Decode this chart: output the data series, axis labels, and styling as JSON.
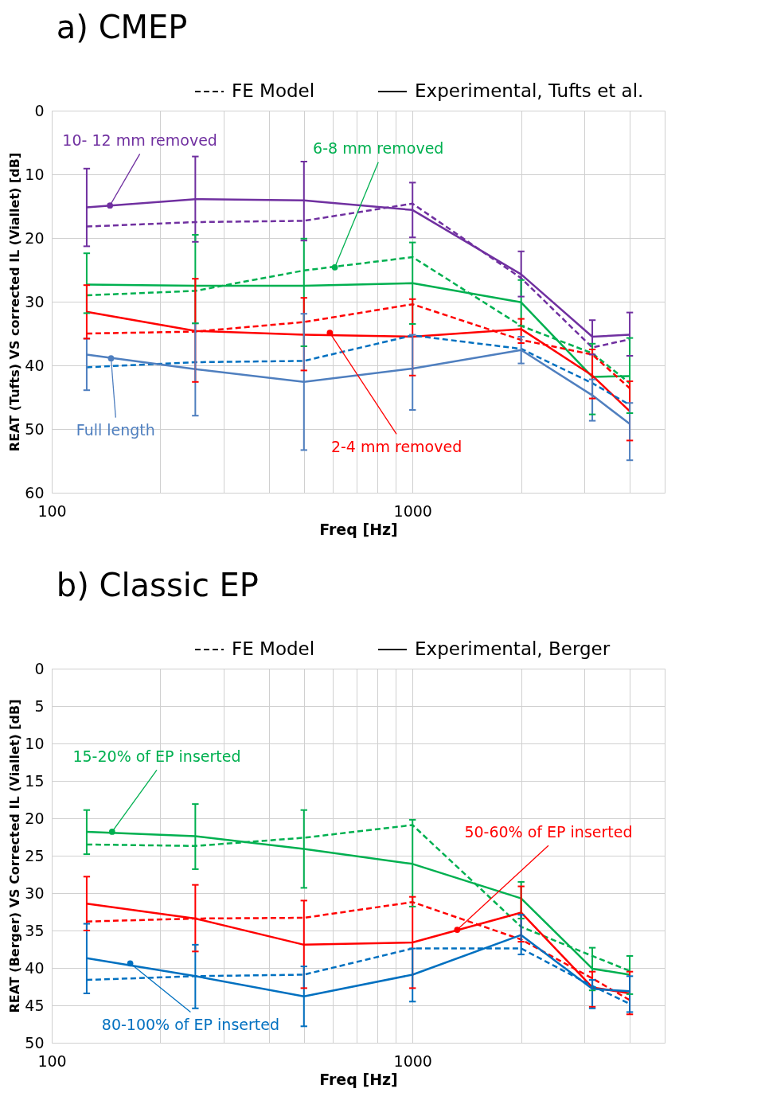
{
  "chart_data": [
    {
      "type": "line",
      "title": "a) CMEP",
      "xlabel": "Freq [Hz]",
      "ylabel": "REAT (Tufts) VS corrected IL (Viallet) [dB]",
      "x": [
        125,
        250,
        500,
        1000,
        2000,
        3150,
        4000
      ],
      "xlim": [
        100,
        5000
      ],
      "log": "x",
      "xticks": [
        100,
        {
          "value": 200,
          "label": null
        },
        {
          "value": 300,
          "label": null
        },
        {
          "value": 400,
          "label": null
        },
        {
          "value": 500,
          "label": null
        },
        {
          "value": 600,
          "label": null
        },
        {
          "value": 700,
          "label": null
        },
        {
          "value": 800,
          "label": null
        },
        {
          "value": 900,
          "label": null
        },
        1000,
        {
          "value": 2000,
          "label": null
        },
        {
          "value": 3000,
          "label": null
        },
        {
          "value": 4000,
          "label": null
        },
        {
          "value": 5000,
          "label": null
        }
      ],
      "ylim": [
        60,
        0
      ],
      "yticks": [
        0,
        10,
        20,
        30,
        40,
        50,
        60
      ],
      "grid": true,
      "marker": "none",
      "series": [
        {
          "color": "#7030a0",
          "line_style": "dashed",
          "values": [
            18.2,
            17.5,
            17.3,
            14.6,
            26.3,
            37.2,
            35.9
          ]
        },
        {
          "color": "#7030a0",
          "line_style": "solid",
          "values": [
            15.2,
            13.9,
            14.1,
            15.6,
            25.7,
            35.5,
            35.2
          ],
          "errors": [
            [
              9.1,
              21.3
            ],
            [
              7.2,
              20.6
            ],
            [
              8.0,
              20.4
            ],
            [
              11.3,
              19.9
            ],
            [
              22.1,
              29.2
            ],
            [
              32.9,
              38.3
            ],
            [
              31.7,
              38.5
            ]
          ]
        },
        {
          "color": "#00b050",
          "line_style": "dashed",
          "values": [
            29.0,
            28.3,
            25.1,
            23.0,
            33.8,
            38.1,
            42.8
          ]
        },
        {
          "color": "#00b050",
          "line_style": "solid",
          "values": [
            27.3,
            27.5,
            27.5,
            27.1,
            30.1,
            41.8,
            41.7
          ],
          "errors": [
            [
              22.4,
              31.8
            ],
            [
              19.5,
              33.4
            ],
            [
              20.1,
              37.0
            ],
            [
              20.7,
              33.5
            ],
            [
              26.6,
              33.8
            ],
            [
              36.6,
              47.7
            ],
            [
              35.7,
              47.5
            ]
          ]
        },
        {
          "color": "#ff0000",
          "line_style": "dashed",
          "values": [
            35.0,
            34.7,
            33.2,
            30.4,
            36.0,
            38.3,
            43.6
          ]
        },
        {
          "color": "#ff0000",
          "line_style": "solid",
          "values": [
            31.6,
            34.6,
            35.2,
            35.5,
            34.3,
            41.6,
            47.2
          ],
          "errors": [
            [
              27.4,
              35.8
            ],
            [
              26.4,
              42.6
            ],
            [
              29.4,
              40.8
            ],
            [
              29.6,
              41.6
            ],
            [
              32.7,
              36.5
            ],
            [
              37.5,
              45.2
            ],
            [
              42.5,
              51.8
            ]
          ]
        },
        {
          "color": "#0070c0",
          "line_style": "dashed",
          "values": [
            40.3,
            39.5,
            39.3,
            35.3,
            37.4,
            42.8,
            46.2
          ]
        },
        {
          "color": "#4f7fbf",
          "line_style": "solid",
          "values": [
            38.3,
            40.6,
            42.6,
            40.5,
            37.6,
            44.7,
            49.2
          ],
          "errors": [
            [
              35.8,
              43.9
            ],
            [
              33.4,
              47.9
            ],
            [
              31.9,
              53.3
            ],
            [
              35.2,
              47.0
            ],
            [
              35.5,
              39.7
            ],
            [
              42.2,
              48.7
            ],
            [
              45.9,
              54.9
            ]
          ]
        }
      ],
      "annotations": [
        "FE Model",
        "Experimental, Tufts et al.",
        {
          "text": "10- 12 mm removed",
          "x": 145,
          "y": 14.9
        },
        {
          "text": "6-8 mm removed",
          "x": 609,
          "y": 24.6
        },
        {
          "text": "Full length",
          "x": 146,
          "y": 38.9
        },
        {
          "text": "2-4 mm removed",
          "x": 590,
          "y": 34.9
        }
      ]
    },
    {
      "type": "line",
      "title": "b) Classic EP",
      "xlabel": "Freq [Hz]",
      "ylabel": "REAT (Berger) VS Corrected IL (Viallet) [dB]",
      "x": [
        125,
        250,
        500,
        1000,
        2000,
        3150,
        4000
      ],
      "xlim": [
        100,
        5000
      ],
      "log": "x",
      "xticks": [
        100,
        {
          "value": 200,
          "label": null
        },
        {
          "value": 300,
          "label": null
        },
        {
          "value": 400,
          "label": null
        },
        {
          "value": 500,
          "label": null
        },
        {
          "value": 600,
          "label": null
        },
        {
          "value": 700,
          "label": null
        },
        {
          "value": 800,
          "label": null
        },
        {
          "value": 900,
          "label": null
        },
        1000,
        {
          "value": 2000,
          "label": null
        },
        {
          "value": 3000,
          "label": null
        },
        {
          "value": 4000,
          "label": null
        },
        {
          "value": 5000,
          "label": null
        }
      ],
      "ylim": [
        50,
        0
      ],
      "yticks": [
        0,
        5,
        10,
        15,
        20,
        25,
        30,
        35,
        40,
        45,
        50
      ],
      "grid": true,
      "marker": "none",
      "series": [
        {
          "color": "#00b050",
          "line_style": "dashed",
          "values": [
            23.5,
            23.7,
            22.6,
            20.9,
            34.5,
            38.4,
            40.4
          ]
        },
        {
          "color": "#00b050",
          "line_style": "solid",
          "values": [
            21.8,
            22.4,
            24.1,
            26.1,
            30.7,
            40.1,
            40.9
          ],
          "errors": [
            [
              18.9,
              24.8
            ],
            [
              18.1,
              26.8
            ],
            [
              18.9,
              29.3
            ],
            [
              20.2,
              31.8
            ],
            [
              28.5,
              33.4
            ],
            [
              37.3,
              43.0
            ],
            [
              38.4,
              43.5
            ]
          ]
        },
        {
          "color": "#ff0000",
          "line_style": "dashed",
          "values": [
            33.8,
            33.4,
            33.3,
            31.2,
            36.2,
            41.4,
            44.3
          ]
        },
        {
          "color": "#ff0000",
          "line_style": "solid",
          "values": [
            31.4,
            33.4,
            36.9,
            36.6,
            32.6,
            42.6,
            43.4
          ],
          "errors": [
            [
              27.8,
              35.0
            ],
            [
              28.9,
              37.8
            ],
            [
              31.0,
              42.7
            ],
            [
              30.5,
              42.7
            ],
            [
              29.1,
              36.5
            ],
            [
              40.5,
              45.2
            ],
            [
              40.5,
              46.2
            ]
          ]
        },
        {
          "color": "#0070c0",
          "line_style": "dashed",
          "values": [
            41.6,
            41.1,
            40.9,
            37.4,
            37.4,
            42.4,
            44.8
          ]
        },
        {
          "color": "#0070c0",
          "line_style": "solid",
          "values": [
            38.7,
            41.1,
            43.8,
            40.9,
            35.6,
            42.8,
            43.1
          ],
          "errors": [
            [
              34.1,
              43.4
            ],
            [
              36.9,
              45.4
            ],
            [
              39.8,
              47.8
            ],
            [
              37.4,
              44.5
            ],
            [
              32.9,
              38.2
            ],
            [
              41.6,
              45.4
            ],
            [
              41.1,
              45.9
            ]
          ]
        }
      ],
      "annotations": [
        "FE Model",
        "Experimental, Berger",
        {
          "text": "15-20% of EP inserted",
          "x": 147,
          "y": 21.8
        },
        {
          "text": "80-100% of EP inserted",
          "x": 165,
          "y": 39.4
        },
        {
          "text": "50-60% of EP inserted",
          "x": 1330,
          "y": 34.9
        }
      ]
    }
  ]
}
